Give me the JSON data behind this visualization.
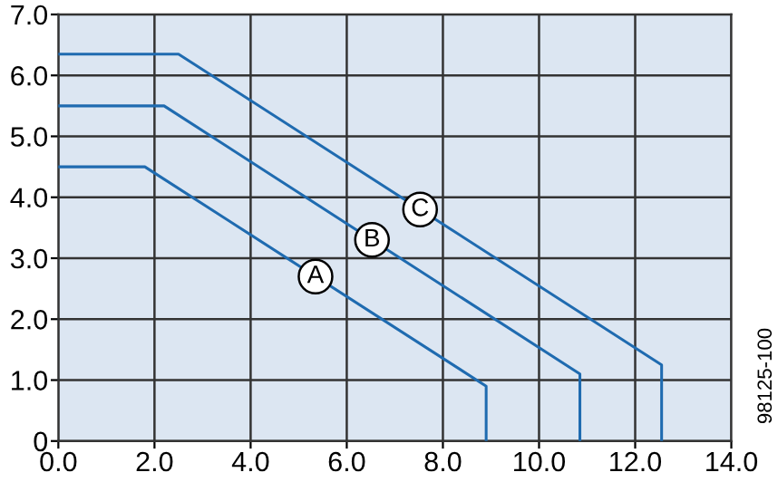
{
  "chart_data": {
    "type": "line",
    "series": [
      {
        "name": "A",
        "color": "#1f6bb0",
        "x": [
          0,
          1.8,
          8.9,
          8.9
        ],
        "values": [
          4.5,
          4.5,
          0.9,
          0
        ]
      },
      {
        "name": "B",
        "color": "#1f6bb0",
        "x": [
          0,
          2.2,
          10.85,
          10.85
        ],
        "values": [
          5.5,
          5.5,
          1.1,
          0
        ]
      },
      {
        "name": "C",
        "color": "#1f6bb0",
        "x": [
          0,
          2.5,
          12.55,
          12.55
        ],
        "values": [
          6.35,
          6.35,
          1.25,
          0
        ]
      }
    ],
    "xlim": [
      0,
      14
    ],
    "ylim": [
      0,
      7
    ],
    "xticks": [
      {
        "value": 0,
        "label": "0.0"
      },
      {
        "value": 2,
        "label": "2.0"
      },
      {
        "value": 4,
        "label": "4.0"
      },
      {
        "value": 6,
        "label": "6.0"
      },
      {
        "value": 8,
        "label": "8.0"
      },
      {
        "value": 10,
        "label": "10.0"
      },
      {
        "value": 12,
        "label": "12.0"
      },
      {
        "value": 14,
        "label": "14.0"
      }
    ],
    "yticks": [
      0,
      {
        "value": 1,
        "label": "1.0"
      },
      {
        "value": 2,
        "label": "2.0"
      },
      {
        "value": 3,
        "label": "3.0"
      },
      {
        "value": 4,
        "label": "4.0"
      },
      {
        "value": 5,
        "label": "5.0"
      },
      {
        "value": 6,
        "label": "6.0"
      },
      {
        "value": 7,
        "label": "7.0"
      }
    ],
    "grid": true,
    "marker": "none",
    "line_style": "solid",
    "legend": false,
    "annotations": [
      "98125-100"
    ]
  }
}
